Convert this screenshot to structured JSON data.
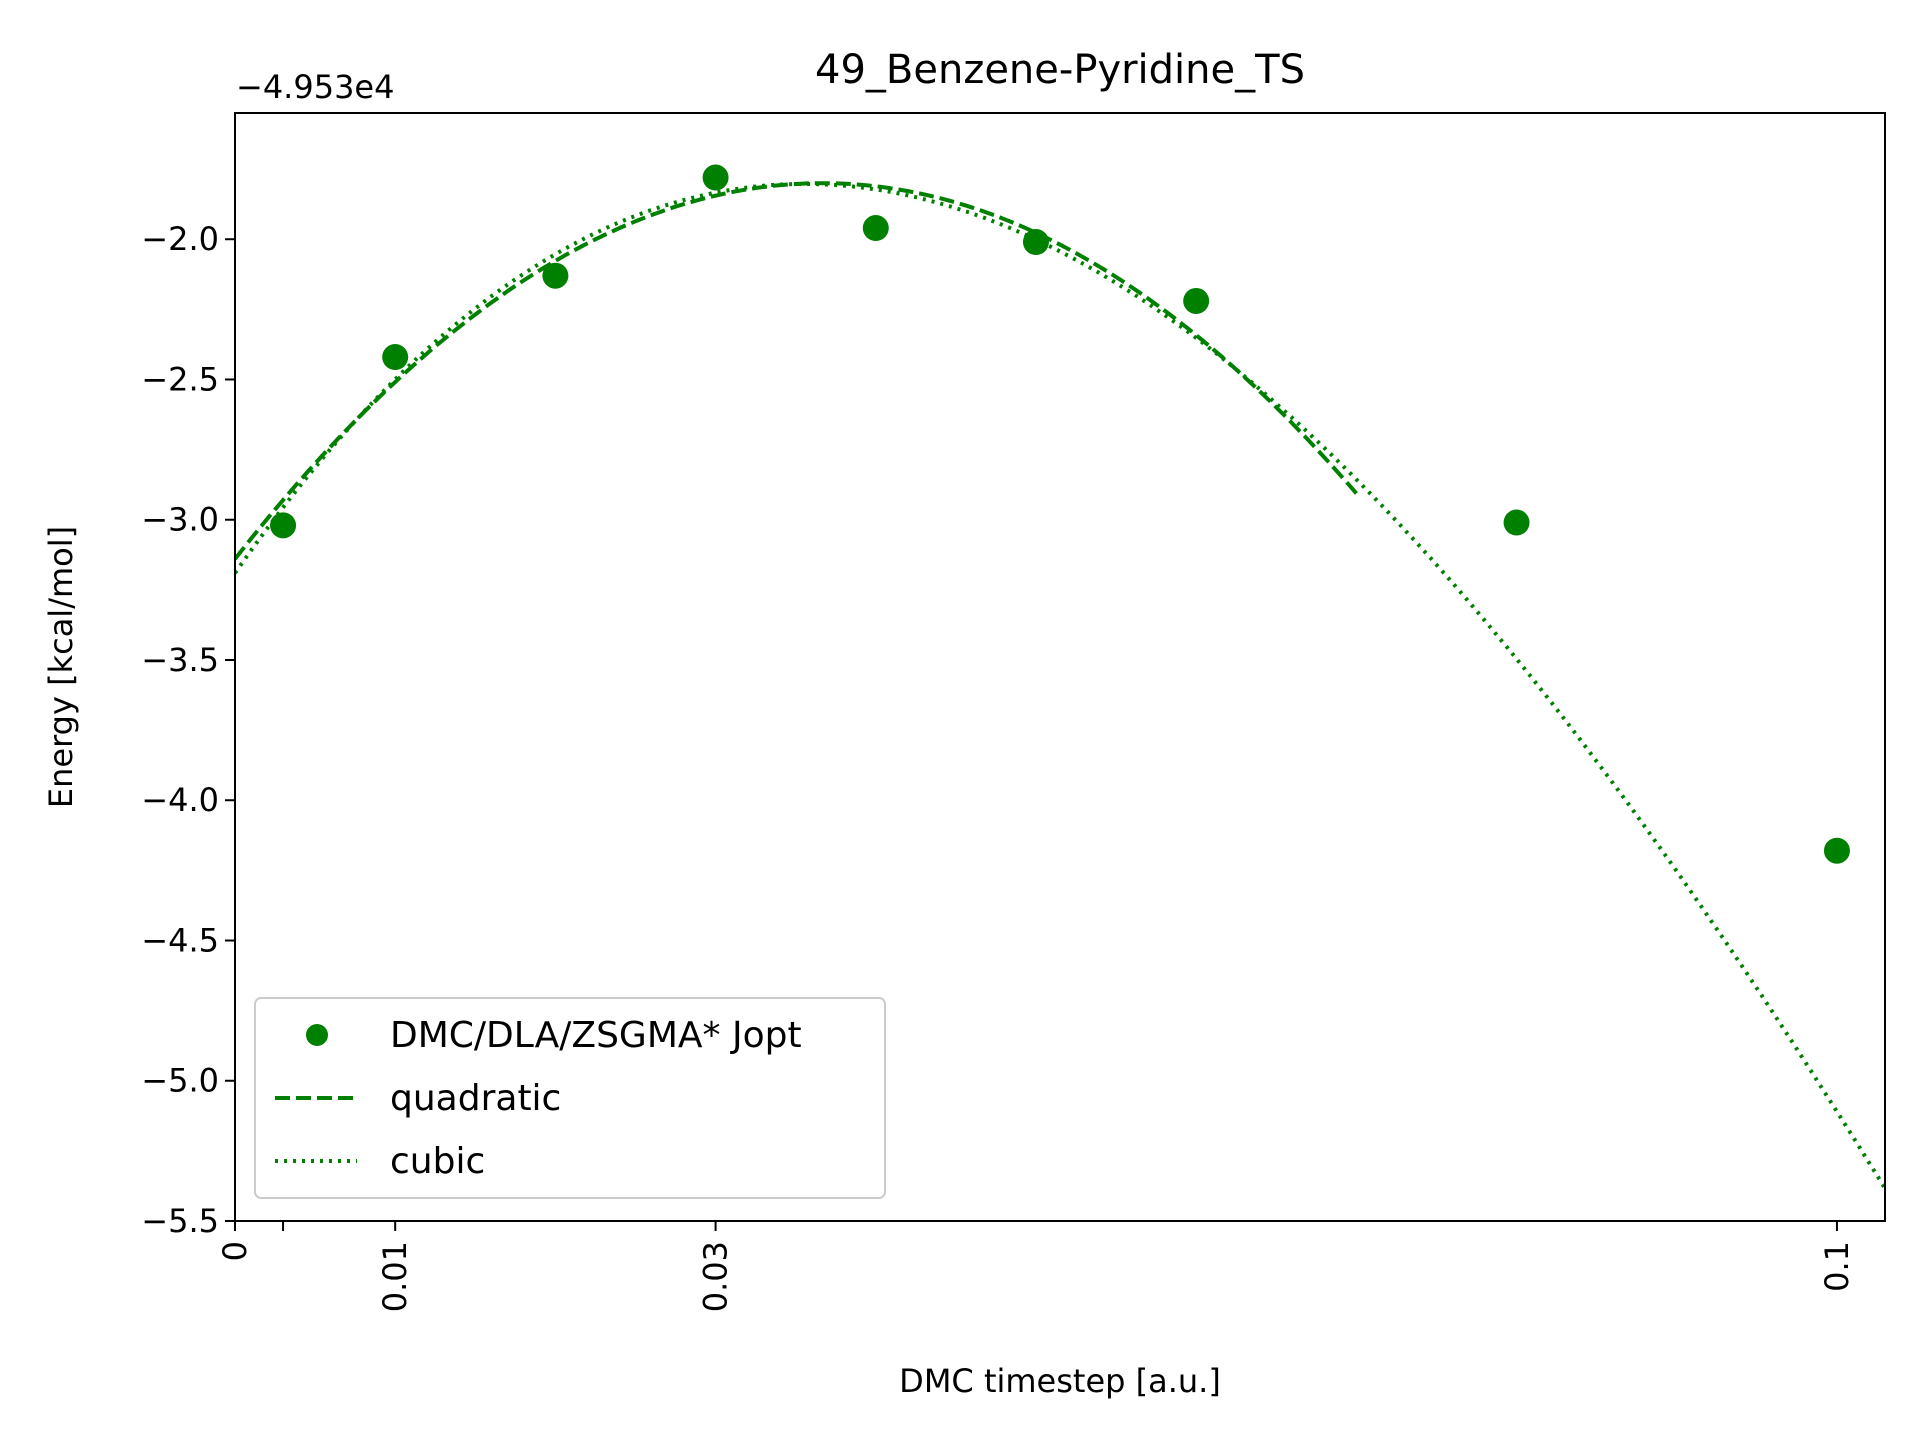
{
  "chart_data": {
    "type": "scatter",
    "title": "49_Benzene-Pyridine_TS",
    "xlabel": "DMC timestep [a.u.]",
    "ylabel": "Energy [kcal/mol]",
    "y_offset_label": "−4.953e4",
    "xlim": [
      0,
      0.103
    ],
    "ylim": [
      -5.5,
      -1.55
    ],
    "x_ticks": [
      0,
      0.003,
      0.01,
      0.03,
      0.1
    ],
    "x_tick_labels": [
      "0",
      "",
      "0.01",
      "0.03",
      "0.1"
    ],
    "y_ticks": [
      -2.0,
      -2.5,
      -3.0,
      -3.5,
      -4.0,
      -4.5,
      -5.0,
      -5.5
    ],
    "y_tick_labels": [
      "−2.0",
      "−2.5",
      "−3.0",
      "−3.5",
      "−4.0",
      "−4.5",
      "−5.0",
      "−5.5"
    ],
    "grid": false,
    "legend_position": "lower-left",
    "color": "#008000",
    "series": [
      {
        "name": "DMC/DLA/ZSGMA* Jopt",
        "style": "points",
        "x": [
          0.003,
          0.01,
          0.02,
          0.03,
          0.04,
          0.05,
          0.06,
          0.08,
          0.1
        ],
        "y": [
          -3.02,
          -2.42,
          -2.13,
          -1.78,
          -1.96,
          -2.01,
          -2.22,
          -3.01,
          -4.18
        ],
        "yerr": [
          0.02,
          0.03,
          0.02,
          0.04,
          0.02,
          0.02,
          0.02,
          0.02,
          0.03
        ]
      },
      {
        "name": "quadratic",
        "style": "dashed",
        "x_range": [
          0,
          0.07
        ],
        "coeffs": [
          -3.14,
          73.06,
          -996.0
        ]
      },
      {
        "name": "cubic",
        "style": "dotted",
        "x_range": [
          0,
          0.103
        ],
        "coeffs": [
          -3.19,
          81.9,
          -1314.0,
          3030.0
        ]
      }
    ]
  }
}
